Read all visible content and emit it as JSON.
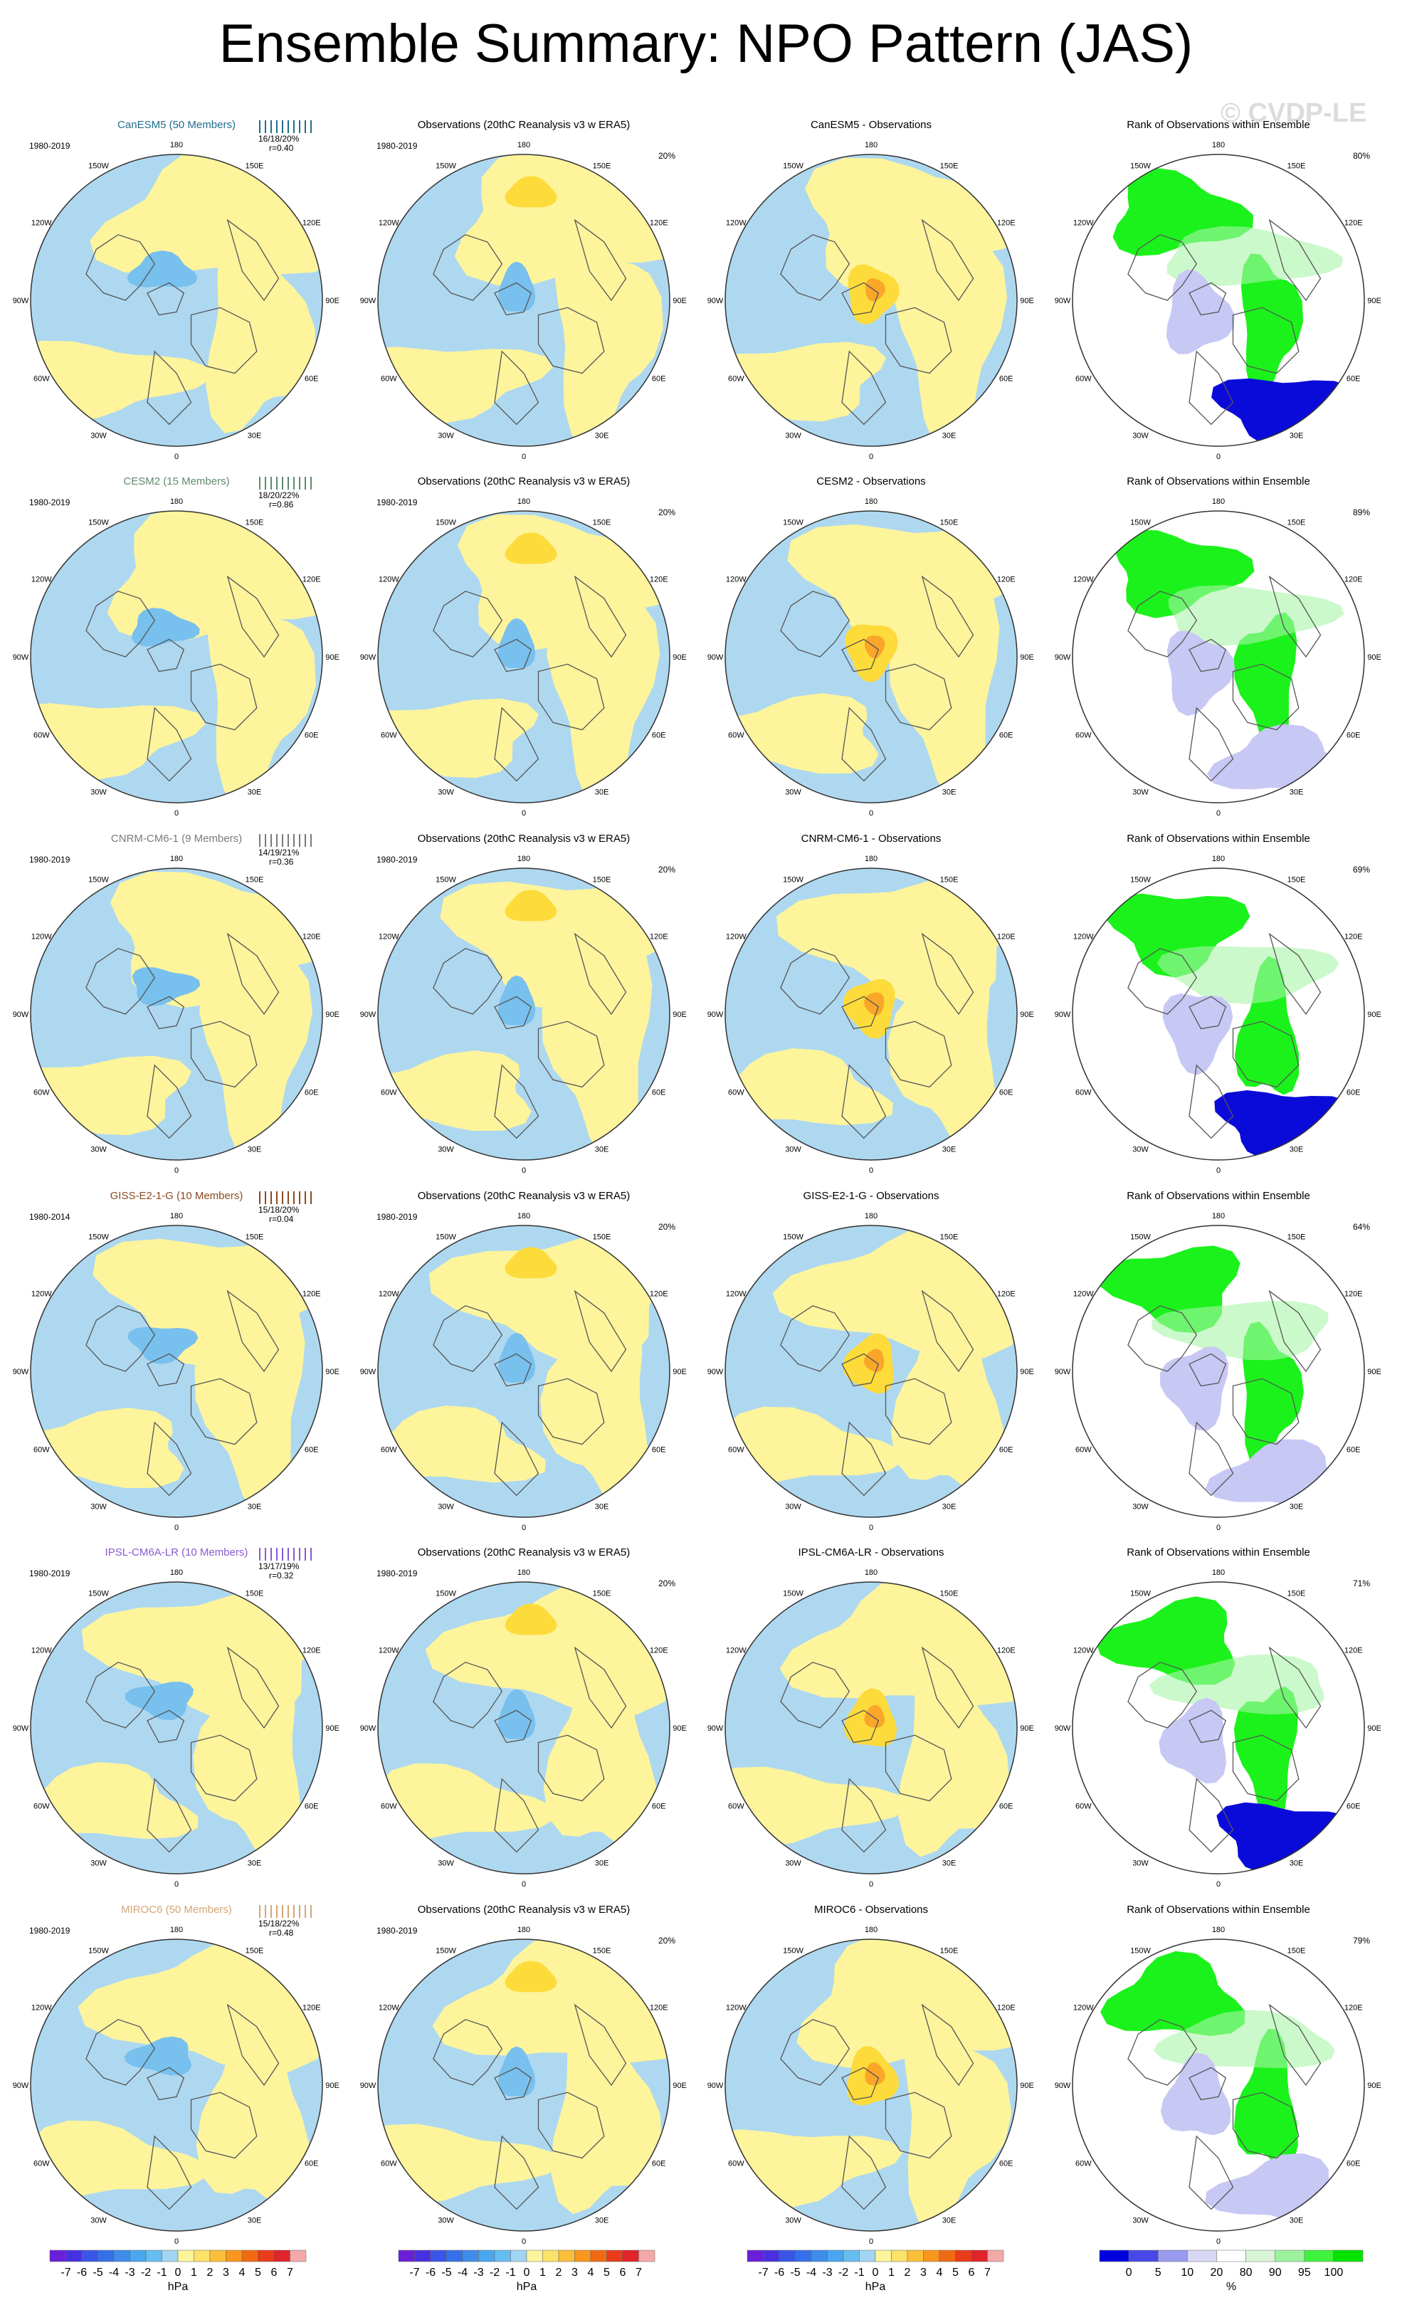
{
  "title": "Ensemble Summary: NPO Pattern (JAS)",
  "watermark": "© CVDP-LE",
  "lon_labels": [
    "180",
    "150E",
    "120E",
    "90E",
    "60E",
    "30E",
    "0",
    "30W",
    "60W",
    "90W",
    "120W",
    "150W"
  ],
  "colors": {
    "ocean": "#ffffff",
    "pos_light": "#fdf49c",
    "neg_light": "#aed8f0",
    "pos_mid": "#fddb3a",
    "pos_strong": "#f9a629",
    "neg_mid": "#78c0ee",
    "neg_strong": "#3d94e8",
    "rank_high": "#1bf21b",
    "rank_midhigh": "#a8f5a8",
    "rank_lowmid": "#c8c8f5",
    "rank_low": "#0b0bd9",
    "coast": "#555555"
  },
  "chart_data": [
    {
      "type": "heatmap",
      "panel": "row1-model",
      "title": "CanESM5 (50 Members)",
      "title_color": "#1f6e8c",
      "years": "1980-2019",
      "stat_line1": "16/18/20%",
      "stat_line2": "r=0.40",
      "variant": "model",
      "blobs": []
    },
    {
      "type": "heatmap",
      "panel": "row1-obs",
      "title": "Observations (20thC Reanalysis v3 w ERA5)",
      "years": "1980-2019",
      "pct": "20%",
      "variant": "obs"
    },
    {
      "type": "heatmap",
      "panel": "row1-diff",
      "title": "CanESM5 - Observations",
      "variant": "diff"
    },
    {
      "type": "heatmap",
      "panel": "row1-rank",
      "title": "Rank of Observations within Ensemble",
      "pct": "80%",
      "variant": "rank"
    },
    {
      "type": "heatmap",
      "panel": "row2-model",
      "title": "CESM2 (15 Members)",
      "title_color": "#5f8a6e",
      "years": "1980-2019",
      "stat_line1": "18/20/22%",
      "stat_line2": "r=0.86",
      "variant": "model"
    },
    {
      "type": "heatmap",
      "panel": "row2-obs",
      "title": "Observations (20thC Reanalysis v3 w ERA5)",
      "years": "1980-2019",
      "pct": "20%",
      "variant": "obs"
    },
    {
      "type": "heatmap",
      "panel": "row2-diff",
      "title": "CESM2 - Observations",
      "variant": "diff"
    },
    {
      "type": "heatmap",
      "panel": "row2-rank",
      "title": "Rank of Observations within Ensemble",
      "pct": "89%",
      "variant": "rank"
    },
    {
      "type": "heatmap",
      "panel": "row3-model",
      "title": "CNRM-CM6-1 (9 Members)",
      "title_color": "#7a7a7a",
      "years": "1980-2019",
      "stat_line1": "14/19/21%",
      "stat_line2": "r=0.36",
      "variant": "model"
    },
    {
      "type": "heatmap",
      "panel": "row3-obs",
      "title": "Observations (20thC Reanalysis v3 w ERA5)",
      "years": "1980-2019",
      "pct": "20%",
      "variant": "obs"
    },
    {
      "type": "heatmap",
      "panel": "row3-diff",
      "title": "CNRM-CM6-1 - Observations",
      "variant": "diff"
    },
    {
      "type": "heatmap",
      "panel": "row3-rank",
      "title": "Rank of Observations within Ensemble",
      "pct": "69%",
      "variant": "rank"
    },
    {
      "type": "heatmap",
      "panel": "row4-model",
      "title": "GISS-E2-1-G (10 Members)",
      "title_color": "#8b4a1e",
      "years": "1980-2014",
      "stat_line1": "15/18/20%",
      "stat_line2": "r=0.04",
      "variant": "model"
    },
    {
      "type": "heatmap",
      "panel": "row4-obs",
      "title": "Observations (20thC Reanalysis v3 w ERA5)",
      "years": "1980-2019",
      "pct": "20%",
      "variant": "obs"
    },
    {
      "type": "heatmap",
      "panel": "row4-diff",
      "title": "GISS-E2-1-G - Observations",
      "variant": "diff"
    },
    {
      "type": "heatmap",
      "panel": "row4-rank",
      "title": "Rank of Observations within Ensemble",
      "pct": "64%",
      "variant": "rank"
    },
    {
      "type": "heatmap",
      "panel": "row5-model",
      "title": "IPSL-CM6A-LR (10 Members)",
      "title_color": "#8a5ad0",
      "years": "1980-2019",
      "stat_line1": "13/17/19%",
      "stat_line2": "r=0.32",
      "variant": "model"
    },
    {
      "type": "heatmap",
      "panel": "row5-obs",
      "title": "Observations (20thC Reanalysis v3 w ERA5)",
      "years": "1980-2019",
      "pct": "20%",
      "variant": "obs"
    },
    {
      "type": "heatmap",
      "panel": "row5-diff",
      "title": "IPSL-CM6A-LR - Observations",
      "variant": "diff"
    },
    {
      "type": "heatmap",
      "panel": "row5-rank",
      "title": "Rank of Observations within Ensemble",
      "pct": "71%",
      "variant": "rank"
    },
    {
      "type": "heatmap",
      "panel": "row6-model",
      "title": "MIROC6 (50 Members)",
      "title_color": "#d4a574",
      "years": "1980-2019",
      "stat_line1": "15/18/22%",
      "stat_line2": "r=0.48",
      "variant": "model"
    },
    {
      "type": "heatmap",
      "panel": "row6-obs",
      "title": "Observations (20thC Reanalysis v3 w ERA5)",
      "years": "1980-2019",
      "pct": "20%",
      "variant": "obs"
    },
    {
      "type": "heatmap",
      "panel": "row6-diff",
      "title": "MIROC6 - Observations",
      "variant": "diff"
    },
    {
      "type": "heatmap",
      "panel": "row6-rank",
      "title": "Rank of Observations within Ensemble",
      "pct": "79%",
      "variant": "rank"
    }
  ],
  "colorbars": {
    "hpa": {
      "unit": "hPa",
      "labels": [
        "-7",
        "-6",
        "-5",
        "-4",
        "-3",
        "-2",
        "-1",
        "0",
        "1",
        "2",
        "3",
        "4",
        "5",
        "6",
        "7"
      ],
      "colors": [
        "#6a1fd8",
        "#4830e0",
        "#3a56e8",
        "#3570e8",
        "#3f8cea",
        "#4aa6ee",
        "#66bdf0",
        "#a2d5f2",
        "#fdf49c",
        "#fde26a",
        "#fbbf3a",
        "#f8961e",
        "#f06a14",
        "#e83c1a",
        "#e0242c",
        "#f4a9a9"
      ]
    },
    "rank": {
      "unit": "%",
      "labels": [
        "0",
        "5",
        "10",
        "20",
        "80",
        "90",
        "95",
        "100"
      ],
      "colors": [
        "#0000dd",
        "#4848e8",
        "#9a9aee",
        "#d8d8f5",
        "#ffffff",
        "#d8f5d8",
        "#9cf29c",
        "#3ef23e",
        "#00e400"
      ]
    }
  }
}
